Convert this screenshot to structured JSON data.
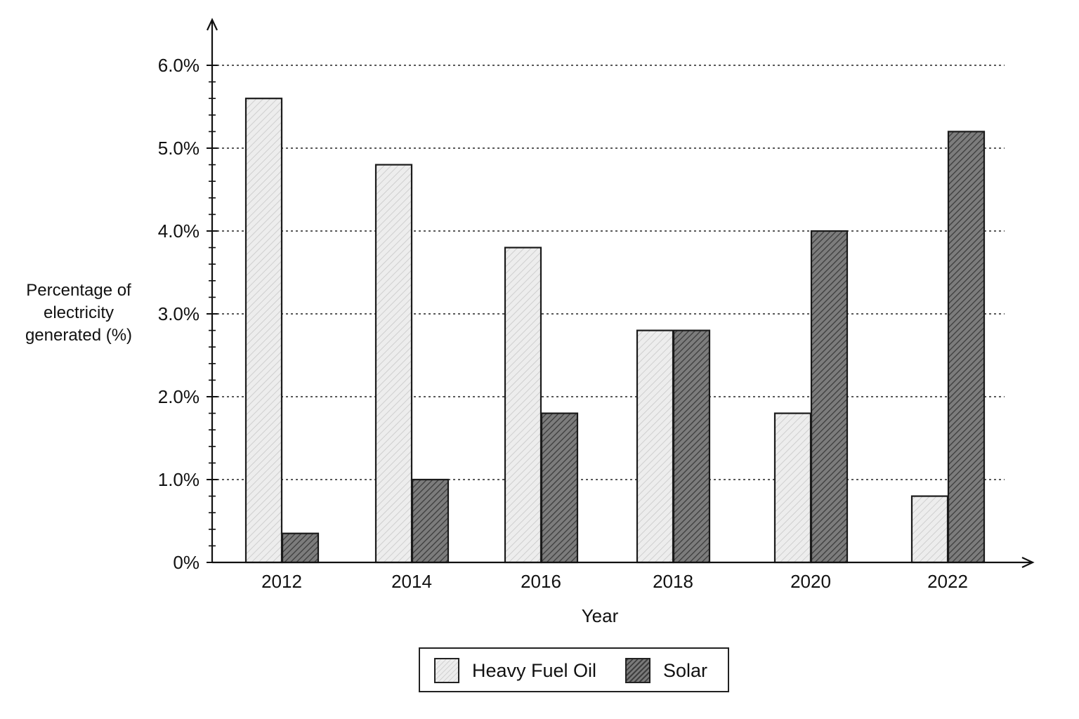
{
  "chart_data": {
    "type": "bar",
    "title": "",
    "xlabel": "Year",
    "ylabel_lines": [
      "Percentage of",
      "electricity",
      "generated (%)"
    ],
    "categories": [
      "2012",
      "2014",
      "2016",
      "2018",
      "2020",
      "2022"
    ],
    "series": [
      {
        "name": "Heavy Fuel Oil",
        "values": [
          5.6,
          4.8,
          3.8,
          2.8,
          1.8,
          0.8
        ],
        "color": "#ededed",
        "hatch_color": "#d2d2d2"
      },
      {
        "name": "Solar",
        "values": [
          0.35,
          1.0,
          1.8,
          2.8,
          4.0,
          5.2
        ],
        "color": "#7a7a7a",
        "hatch_color": "#3e3e3e"
      }
    ],
    "ylim": [
      0,
      6.0
    ],
    "yticks": [
      0,
      1.0,
      2.0,
      3.0,
      4.0,
      5.0,
      6.0
    ],
    "ytick_labels": [
      "0%",
      "1.0%",
      "2.0%",
      "3.0%",
      "4.0%",
      "5.0%",
      "6.0%"
    ],
    "grid": "horizontal dotted",
    "legend_position": "bottom-center"
  }
}
